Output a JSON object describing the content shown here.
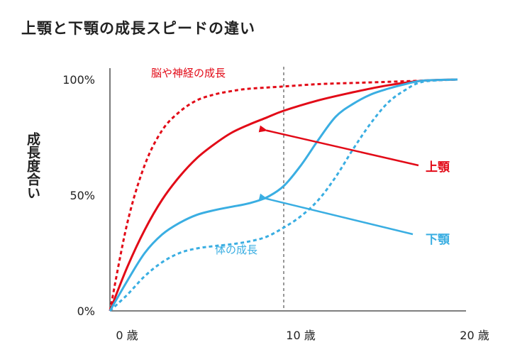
{
  "colors": {
    "red": "#e20a17",
    "blue": "#3aaee2",
    "axis": "#333333",
    "text": "#222222",
    "guide": "#555555"
  },
  "chart_data": {
    "type": "line",
    "title": "上顎と下顎の成長スピードの違い",
    "xlabel": "",
    "ylabel": "成長度合い",
    "xlim": [
      0,
      20
    ],
    "ylim": [
      0,
      100
    ],
    "x_ticks": [
      {
        "value": 0,
        "label": "0 歳"
      },
      {
        "value": 10,
        "label": "10 歳"
      },
      {
        "value": 20,
        "label": "20 歳"
      }
    ],
    "y_ticks": [
      {
        "value": 0,
        "label": "0%"
      },
      {
        "value": 50,
        "label": "50%"
      },
      {
        "value": 100,
        "label": "100%"
      }
    ],
    "reference_line": {
      "x": 10,
      "style": "dashed"
    },
    "series": [
      {
        "name": "脳や神経の成長",
        "color": "#e20a17",
        "dash": true,
        "x": [
          0,
          1,
          2,
          3,
          4,
          5,
          6,
          7,
          8,
          10,
          12,
          14,
          16,
          18,
          20
        ],
        "y": [
          0,
          38,
          63,
          78,
          86,
          91,
          93.5,
          95,
          96,
          97,
          98,
          98.5,
          99,
          99.5,
          100
        ]
      },
      {
        "name": "上顎",
        "color": "#e20a17",
        "dash": false,
        "x": [
          0,
          1,
          2,
          3,
          4,
          5,
          6,
          7,
          8,
          9,
          10,
          12,
          14,
          16,
          18,
          20
        ],
        "y": [
          0,
          19,
          35,
          48,
          58,
          66,
          72,
          77,
          80.5,
          83.5,
          86.5,
          91,
          94.5,
          97.5,
          99.5,
          100
        ]
      },
      {
        "name": "下顎",
        "color": "#3aaee2",
        "dash": false,
        "x": [
          0,
          1,
          2,
          3,
          4,
          5,
          6,
          7,
          8,
          9,
          10,
          11,
          12,
          13,
          14,
          15,
          16,
          17,
          18,
          20
        ],
        "y": [
          0,
          13,
          25,
          33,
          38,
          41.5,
          43.5,
          45,
          46.5,
          49,
          54,
          63,
          74,
          84,
          89.5,
          93.5,
          96,
          98,
          99.5,
          100
        ]
      },
      {
        "name": "体の成長",
        "color": "#3aaee2",
        "dash": true,
        "x": [
          0,
          1,
          2,
          3,
          4,
          5,
          6,
          7,
          8,
          9,
          10,
          11,
          12,
          13,
          14,
          15,
          16,
          17,
          18,
          20
        ],
        "y": [
          0,
          7,
          15,
          21,
          25,
          27,
          28,
          28.8,
          30,
          32,
          36,
          41,
          48,
          58,
          70,
          81,
          90,
          95.5,
          99,
          100
        ]
      }
    ],
    "annotations": [
      {
        "text": "脳や神経の成長",
        "color": "#e20a17"
      },
      {
        "text": "上顎",
        "color": "#e20a17",
        "arrow_to": {
          "x": 9,
          "y": 78
        }
      },
      {
        "text": "下顎",
        "color": "#3aaee2",
        "arrow_to": {
          "x": 9,
          "y": 48.5
        }
      },
      {
        "text": "体の成長",
        "color": "#3aaee2"
      }
    ]
  }
}
